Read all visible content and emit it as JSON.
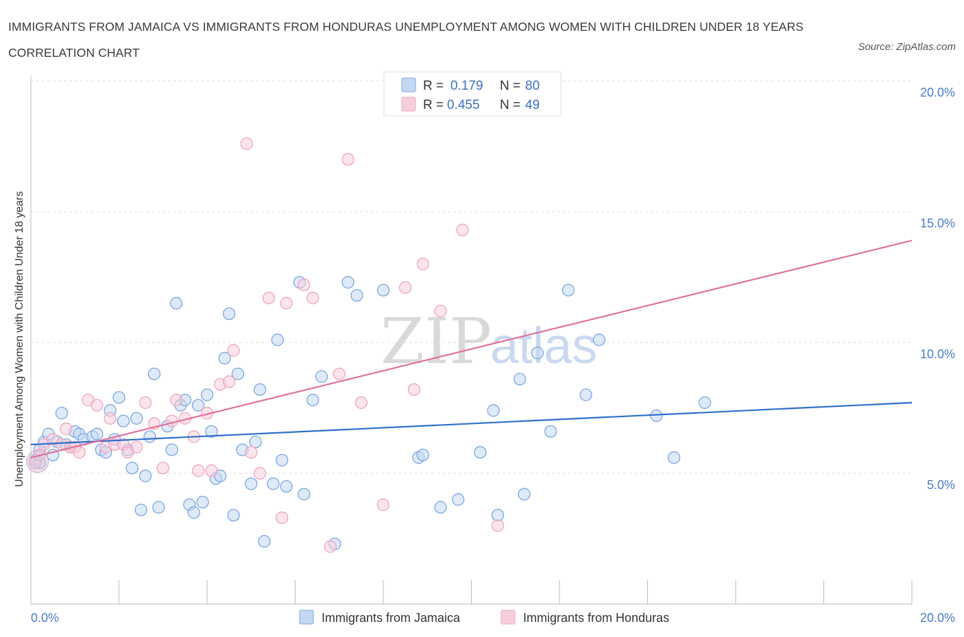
{
  "title": "IMMIGRANTS FROM JAMAICA VS IMMIGRANTS FROM HONDURAS UNEMPLOYMENT AMONG WOMEN WITH CHILDREN UNDER 18 YEARS CORRELATION CHART",
  "source": "Source: ZipAtlas.com",
  "watermark": {
    "zip": "ZIP",
    "atlas": "atlas"
  },
  "legend_top": [
    {
      "r_label": "R =",
      "r_value": "0.179",
      "n_label": "N =",
      "n_value": "80",
      "color": "#7aa6e0"
    },
    {
      "r_label": "R =",
      "r_value": "0.455",
      "n_label": "N =",
      "n_value": "49",
      "color": "#f0a3bd"
    }
  ],
  "chart_data": {
    "type": "scatter",
    "title": "",
    "xlabel": "",
    "ylabel": "Unemployment Among Women with Children Under 18 years",
    "xlim": [
      0,
      20
    ],
    "ylim": [
      0,
      20
    ],
    "x_tick_labels": [
      {
        "value": 0,
        "label": "0.0%"
      },
      {
        "value": 20,
        "label": "20.0%"
      }
    ],
    "y_tick_labels": [
      {
        "value": 5,
        "label": "5.0%"
      },
      {
        "value": 10,
        "label": "10.0%"
      },
      {
        "value": 15,
        "label": "15.0%"
      },
      {
        "value": 20,
        "label": "20.0%"
      }
    ],
    "grid": true,
    "legend_position": "bottom",
    "series": [
      {
        "name": "Immigrants from Jamaica",
        "color": "#7aa6e0",
        "fill": "#c5d8f3",
        "line_color": "#2d6fcc",
        "trend": {
          "x": [
            0,
            20
          ],
          "y": [
            6.1,
            7.7
          ]
        },
        "points": [
          [
            0.1,
            5.5
          ],
          [
            0.2,
            5.9
          ],
          [
            0.3,
            6.2
          ],
          [
            0.4,
            6.5
          ],
          [
            0.5,
            5.7
          ],
          [
            0.6,
            6.2
          ],
          [
            0.7,
            7.3
          ],
          [
            0.8,
            6.1
          ],
          [
            0.9,
            6.0
          ],
          [
            1.0,
            6.6
          ],
          [
            1.1,
            6.5
          ],
          [
            1.2,
            6.3
          ],
          [
            1.4,
            6.4
          ],
          [
            1.5,
            6.5
          ],
          [
            1.6,
            5.9
          ],
          [
            1.7,
            5.8
          ],
          [
            1.8,
            7.4
          ],
          [
            1.9,
            6.3
          ],
          [
            2.0,
            7.9
          ],
          [
            2.1,
            7.0
          ],
          [
            2.2,
            5.9
          ],
          [
            2.3,
            5.2
          ],
          [
            2.4,
            7.1
          ],
          [
            2.5,
            3.6
          ],
          [
            2.6,
            4.9
          ],
          [
            2.7,
            6.4
          ],
          [
            2.8,
            8.8
          ],
          [
            2.9,
            3.7
          ],
          [
            3.1,
            6.8
          ],
          [
            3.2,
            5.9
          ],
          [
            3.3,
            11.5
          ],
          [
            3.4,
            7.6
          ],
          [
            3.5,
            7.8
          ],
          [
            3.6,
            3.8
          ],
          [
            3.7,
            3.5
          ],
          [
            3.8,
            7.6
          ],
          [
            3.9,
            3.9
          ],
          [
            4.0,
            8.0
          ],
          [
            4.1,
            6.6
          ],
          [
            4.2,
            4.8
          ],
          [
            4.3,
            4.9
          ],
          [
            4.4,
            9.4
          ],
          [
            4.5,
            11.1
          ],
          [
            4.6,
            3.4
          ],
          [
            4.7,
            8.8
          ],
          [
            4.8,
            5.9
          ],
          [
            5.0,
            4.6
          ],
          [
            5.1,
            6.2
          ],
          [
            5.2,
            8.2
          ],
          [
            5.3,
            2.4
          ],
          [
            5.5,
            4.6
          ],
          [
            5.6,
            10.1
          ],
          [
            5.7,
            5.5
          ],
          [
            5.8,
            4.5
          ],
          [
            6.1,
            12.3
          ],
          [
            6.2,
            4.2
          ],
          [
            6.4,
            7.8
          ],
          [
            6.6,
            8.7
          ],
          [
            6.9,
            2.3
          ],
          [
            7.2,
            12.3
          ],
          [
            7.4,
            11.8
          ],
          [
            8.0,
            12.0
          ],
          [
            8.8,
            5.6
          ],
          [
            8.9,
            5.7
          ],
          [
            9.3,
            3.7
          ],
          [
            9.7,
            4.0
          ],
          [
            10.2,
            5.8
          ],
          [
            10.5,
            7.4
          ],
          [
            10.6,
            3.4
          ],
          [
            11.1,
            8.6
          ],
          [
            11.2,
            4.2
          ],
          [
            11.5,
            9.6
          ],
          [
            11.8,
            6.6
          ],
          [
            12.2,
            12.0
          ],
          [
            12.6,
            8.0
          ],
          [
            12.9,
            10.1
          ],
          [
            14.2,
            7.2
          ],
          [
            14.6,
            5.6
          ],
          [
            15.3,
            7.7
          ],
          [
            0.2,
            5.4
          ]
        ]
      },
      {
        "name": "Immigrants from Honduras",
        "color": "#f0a3bd",
        "fill": "#f7cfdc",
        "line_color": "#e0709a",
        "trend": {
          "x": [
            0,
            20
          ],
          "y": [
            5.6,
            13.9
          ]
        },
        "points": [
          [
            0.1,
            5.4
          ],
          [
            0.2,
            5.7
          ],
          [
            0.3,
            6.1
          ],
          [
            0.5,
            6.3
          ],
          [
            0.7,
            6.1
          ],
          [
            0.8,
            6.7
          ],
          [
            0.9,
            6.0
          ],
          [
            1.0,
            6.0
          ],
          [
            1.1,
            5.8
          ],
          [
            1.3,
            7.8
          ],
          [
            1.5,
            7.6
          ],
          [
            1.7,
            6.0
          ],
          [
            1.8,
            7.1
          ],
          [
            1.9,
            6.1
          ],
          [
            2.1,
            6.1
          ],
          [
            2.2,
            5.8
          ],
          [
            2.4,
            6.0
          ],
          [
            2.6,
            7.7
          ],
          [
            2.8,
            6.9
          ],
          [
            3.0,
            5.2
          ],
          [
            3.2,
            7.0
          ],
          [
            3.3,
            7.8
          ],
          [
            3.5,
            7.1
          ],
          [
            3.7,
            6.4
          ],
          [
            3.8,
            5.1
          ],
          [
            4.0,
            7.3
          ],
          [
            4.1,
            5.1
          ],
          [
            4.3,
            8.4
          ],
          [
            4.5,
            8.5
          ],
          [
            4.6,
            9.7
          ],
          [
            4.9,
            17.6
          ],
          [
            5.0,
            5.8
          ],
          [
            5.2,
            5.0
          ],
          [
            5.4,
            11.7
          ],
          [
            5.7,
            3.3
          ],
          [
            5.8,
            11.5
          ],
          [
            6.2,
            12.2
          ],
          [
            6.4,
            11.7
          ],
          [
            6.8,
            2.2
          ],
          [
            7.0,
            8.8
          ],
          [
            7.2,
            17.0
          ],
          [
            7.5,
            7.7
          ],
          [
            8.0,
            3.8
          ],
          [
            8.5,
            12.1
          ],
          [
            8.7,
            8.2
          ],
          [
            8.9,
            13.0
          ],
          [
            9.3,
            11.2
          ],
          [
            9.8,
            14.3
          ],
          [
            10.6,
            3.0
          ]
        ]
      }
    ]
  },
  "bottom_legend": [
    {
      "label": "Immigrants from Jamaica",
      "color": "#7aa6e0"
    },
    {
      "label": "Immigrants from Honduras",
      "color": "#f0a3bd"
    }
  ]
}
